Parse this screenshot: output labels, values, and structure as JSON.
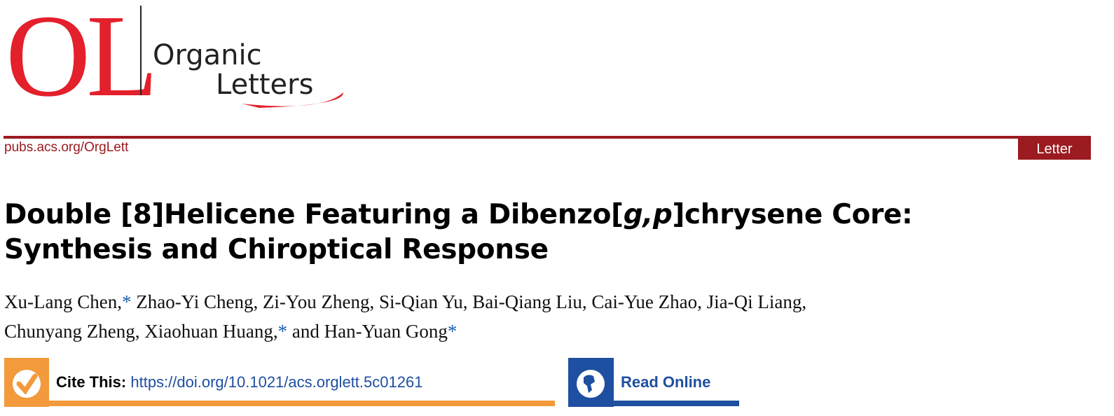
{
  "journal": {
    "logo_mark": "OL",
    "logo_word1": "Organic",
    "logo_word2": "Letters",
    "site": "pubs.acs.org/OrgLett",
    "article_type": "Letter"
  },
  "title": {
    "line1_pre": "Double [8]Helicene Featuring a Dibenzo[",
    "line1_ital": "g,p",
    "line1_post": "]chrysene Core:",
    "line2": "Synthesis and Chiroptical Response"
  },
  "authors": {
    "line1_a": "Xu-Lang Chen,",
    "line1_b": " Zhao-Yi Cheng, Zi-You Zheng, Si-Qian Yu, Bai-Qiang Liu, Cai-Yue Zhao, Jia-Qi Liang,",
    "line2_a": "Chunyang Zheng, Xiaohuan Huang,",
    "line2_b": " and Han-Yuan Gong",
    "star": "*"
  },
  "cite": {
    "label": "Cite This:",
    "doi": "https://doi.org/10.1021/acs.orglett.5c01261",
    "icon": "checkmark-icon"
  },
  "read": {
    "label": "Read Online",
    "icon": "globe-icon"
  },
  "colors": {
    "brand_red": "#9b1b20",
    "logo_red": "#e3202b",
    "orange": "#f29a3c",
    "blue": "#1e4fa0"
  }
}
